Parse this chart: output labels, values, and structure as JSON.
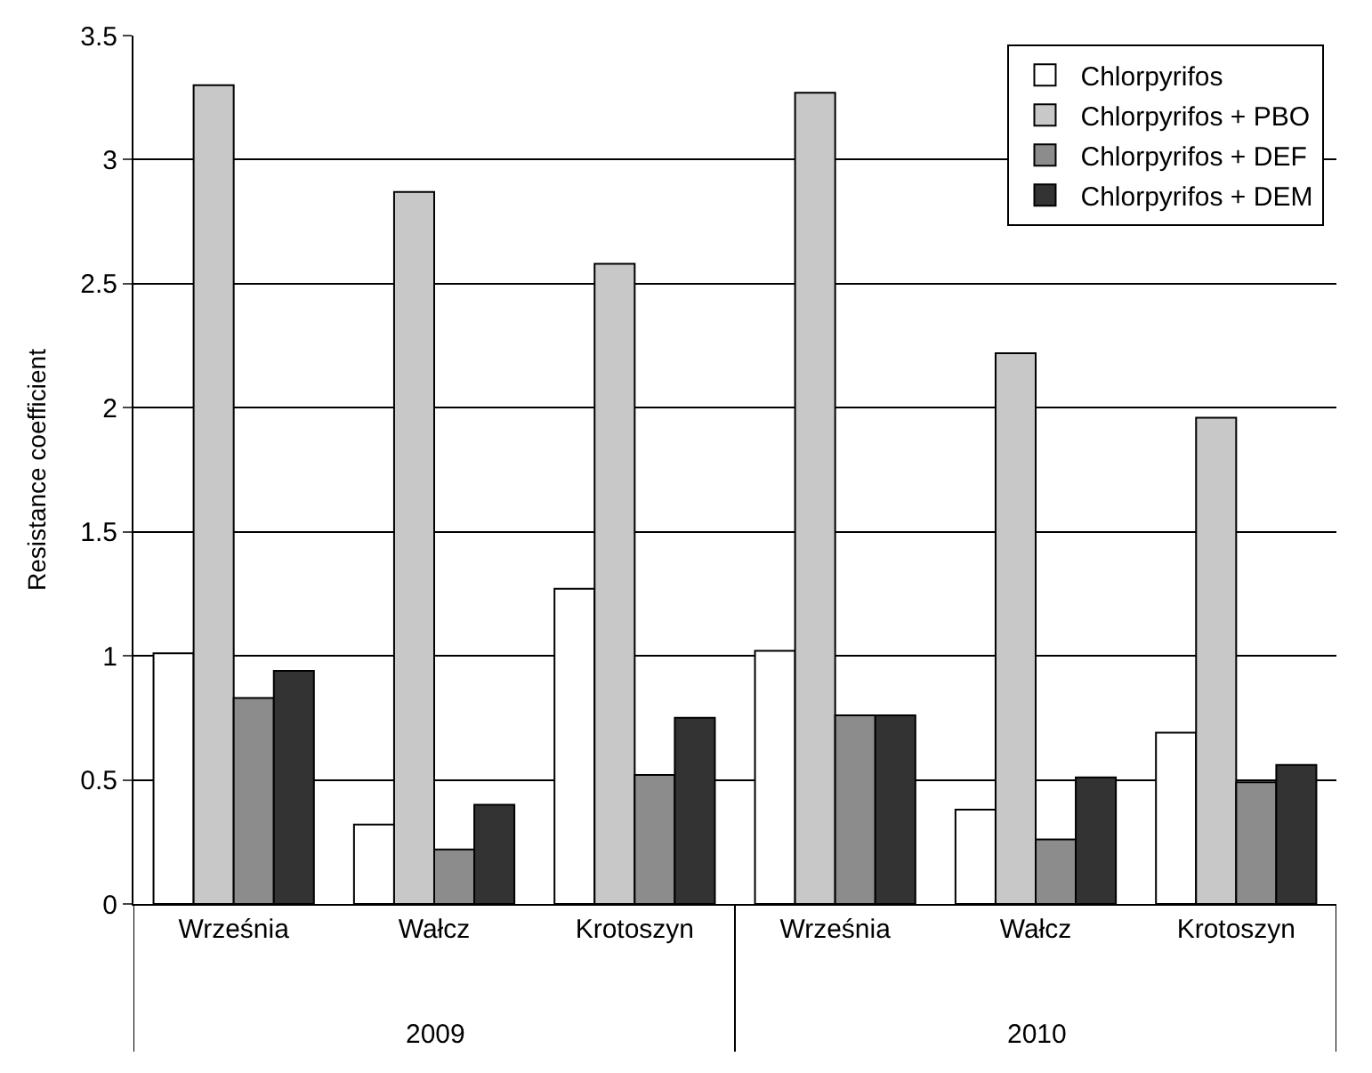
{
  "chart_data": {
    "type": "bar",
    "ylabel": "Resistance coefficient",
    "categories": [
      "Września",
      "Wałcz",
      "Krotoszyn",
      "Września",
      "Wałcz",
      "Krotoszyn"
    ],
    "series": [
      {
        "name": "Chlorpyrifos",
        "color": "#ffffff",
        "values": [
          1.01,
          0.32,
          1.27,
          1.02,
          0.38,
          0.69
        ]
      },
      {
        "name": "Chlorpyrifos + PBO",
        "color": "#c8c8c8",
        "values": [
          3.3,
          2.87,
          2.58,
          3.27,
          2.22,
          1.96
        ]
      },
      {
        "name": "Chlorpyrifos + DEF",
        "color": "#8c8c8c",
        "values": [
          0.83,
          0.22,
          0.52,
          0.76,
          0.26,
          0.49
        ]
      },
      {
        "name": "Chlorpyrifos + DEM",
        "color": "#333333",
        "values": [
          0.94,
          0.4,
          0.75,
          0.76,
          0.51,
          0.56
        ]
      }
    ],
    "annotations": [
      "2009",
      "2010"
    ],
    "ylim": [
      0,
      3.5
    ],
    "yticks": [
      0,
      0.5,
      1,
      1.5,
      2,
      2.5,
      3,
      3.5
    ],
    "grid": "y",
    "legend": "top right"
  }
}
